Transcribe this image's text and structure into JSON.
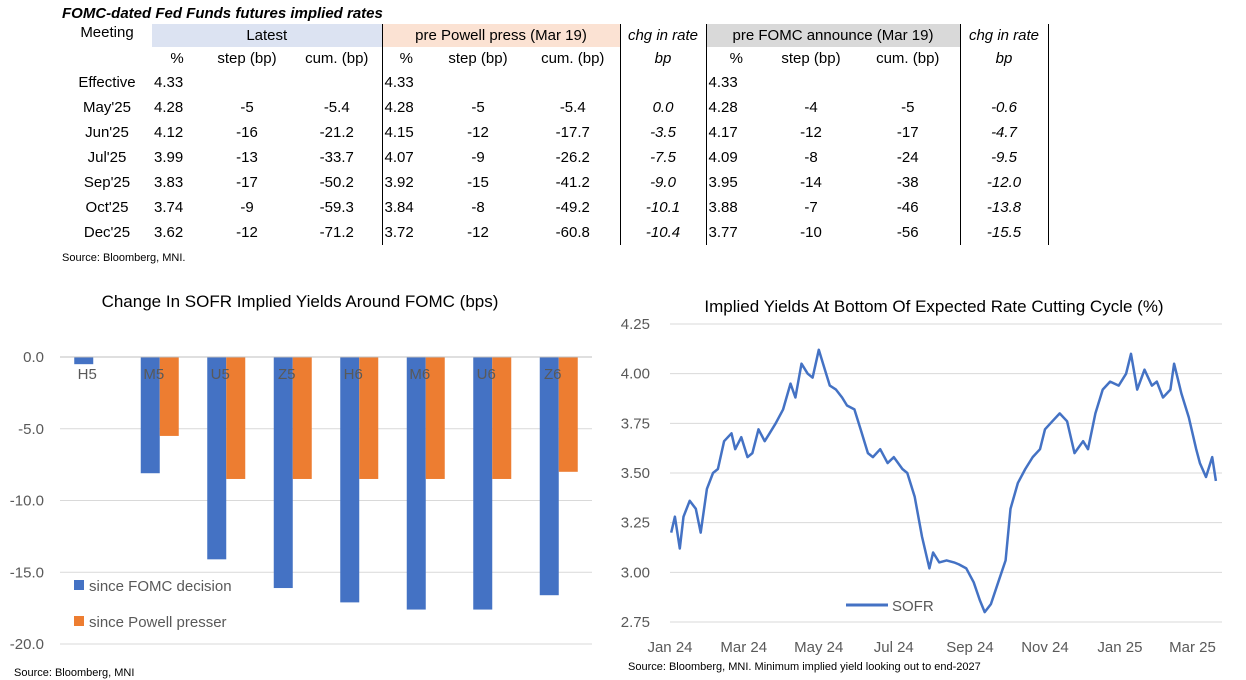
{
  "table": {
    "title": "FOMC-dated Fed Funds futures implied rates",
    "source": "Source: Bloomberg, MNI.",
    "meeting_header": "Meeting",
    "groups": {
      "latest": "Latest",
      "pre_powell": "pre Powell press (Mar 19)",
      "chg1": "chg in rate",
      "pre_fomc": "pre FOMC announce (Mar 19)",
      "chg2": "chg in rate"
    },
    "subheaders": {
      "pct": "%",
      "step": "step (bp)",
      "cum": "cum. (bp)",
      "bp": "bp"
    },
    "rows": [
      {
        "meeting": "Effective",
        "l_pct": "4.33",
        "l_step": "",
        "l_cum": "",
        "p_pct": "4.33",
        "p_step": "",
        "p_cum": "",
        "chg1": "",
        "f_pct": "4.33",
        "f_step": "",
        "f_cum": "",
        "chg2": ""
      },
      {
        "meeting": "May'25",
        "l_pct": "4.28",
        "l_step": "-5",
        "l_cum": "-5.4",
        "p_pct": "4.28",
        "p_step": "-5",
        "p_cum": "-5.4",
        "chg1": "0.0",
        "f_pct": "4.28",
        "f_step": "-4",
        "f_cum": "-5",
        "chg2": "-0.6"
      },
      {
        "meeting": "Jun'25",
        "l_pct": "4.12",
        "l_step": "-16",
        "l_cum": "-21.2",
        "p_pct": "4.15",
        "p_step": "-12",
        "p_cum": "-17.7",
        "chg1": "-3.5",
        "f_pct": "4.17",
        "f_step": "-12",
        "f_cum": "-17",
        "chg2": "-4.7"
      },
      {
        "meeting": "Jul'25",
        "l_pct": "3.99",
        "l_step": "-13",
        "l_cum": "-33.7",
        "p_pct": "4.07",
        "p_step": "-9",
        "p_cum": "-26.2",
        "chg1": "-7.5",
        "f_pct": "4.09",
        "f_step": "-8",
        "f_cum": "-24",
        "chg2": "-9.5"
      },
      {
        "meeting": "Sep'25",
        "l_pct": "3.83",
        "l_step": "-17",
        "l_cum": "-50.2",
        "p_pct": "3.92",
        "p_step": "-15",
        "p_cum": "-41.2",
        "chg1": "-9.0",
        "f_pct": "3.95",
        "f_step": "-14",
        "f_cum": "-38",
        "chg2": "-12.0"
      },
      {
        "meeting": "Oct'25",
        "l_pct": "3.74",
        "l_step": "-9",
        "l_cum": "-59.3",
        "p_pct": "3.84",
        "p_step": "-8",
        "p_cum": "-49.2",
        "chg1": "-10.1",
        "f_pct": "3.88",
        "f_step": "-7",
        "f_cum": "-46",
        "chg2": "-13.8"
      },
      {
        "meeting": "Dec'25",
        "l_pct": "3.62",
        "l_step": "-12",
        "l_cum": "-71.2",
        "p_pct": "3.72",
        "p_step": "-12",
        "p_cum": "-60.8",
        "chg1": "-10.4",
        "f_pct": "3.77",
        "f_step": "-10",
        "f_cum": "-56",
        "chg2": "-15.5"
      }
    ]
  },
  "colors": {
    "blue": "#4472c4",
    "orange": "#ed7d31",
    "grid": "#d9d9d9",
    "axis_text": "#595959"
  },
  "chart_data": [
    {
      "type": "bar",
      "title": "Change In SOFR Implied Yields Around FOMC (bps)",
      "categories": [
        "H5",
        "M5",
        "U5",
        "Z5",
        "H6",
        "M6",
        "U6",
        "Z6"
      ],
      "series": [
        {
          "name": "since FOMC decision",
          "values": [
            -0.5,
            -8.1,
            -14.1,
            -16.1,
            -17.1,
            -17.6,
            -17.6,
            -16.6
          ]
        },
        {
          "name": "since Powell presser",
          "values": [
            0.0,
            -5.5,
            -8.5,
            -8.5,
            -8.5,
            -8.5,
            -8.5,
            -8.0
          ]
        }
      ],
      "ylim": [
        -20,
        0
      ],
      "yticks": [
        0,
        -5,
        -10,
        -15,
        -20
      ],
      "ytick_labels": [
        "0.0",
        "-5.0",
        "-10.0",
        "-15.0",
        "-20.0"
      ],
      "grid": true,
      "legend_position": "bottom-left",
      "source": "Source: Bloomberg, MNI"
    },
    {
      "type": "line",
      "title": "Implied Yields At Bottom Of Expected Rate Cutting Cycle (%)",
      "series": [
        {
          "name": "SOFR",
          "x": [
            "2024-01-02",
            "2024-01-05",
            "2024-01-09",
            "2024-01-12",
            "2024-01-17",
            "2024-01-22",
            "2024-01-26",
            "2024-01-31",
            "2024-02-05",
            "2024-02-09",
            "2024-02-14",
            "2024-02-20",
            "2024-02-23",
            "2024-02-28",
            "2024-03-04",
            "2024-03-08",
            "2024-03-13",
            "2024-03-18",
            "2024-03-22",
            "2024-03-27",
            "2024-04-02",
            "2024-04-08",
            "2024-04-12",
            "2024-04-17",
            "2024-04-22",
            "2024-04-26",
            "2024-05-01",
            "2024-05-06",
            "2024-05-10",
            "2024-05-15",
            "2024-05-20",
            "2024-05-24",
            "2024-05-30",
            "2024-06-04",
            "2024-06-10",
            "2024-06-14",
            "2024-06-20",
            "2024-06-26",
            "2024-07-01",
            "2024-07-08",
            "2024-07-12",
            "2024-07-18",
            "2024-07-24",
            "2024-07-30",
            "2024-08-02",
            "2024-08-07",
            "2024-08-13",
            "2024-08-19",
            "2024-08-23",
            "2024-08-29",
            "2024-09-04",
            "2024-09-09",
            "2024-09-13",
            "2024-09-18",
            "2024-09-24",
            "2024-09-30",
            "2024-10-04",
            "2024-10-10",
            "2024-10-16",
            "2024-10-22",
            "2024-10-28",
            "2024-11-01",
            "2024-11-07",
            "2024-11-13",
            "2024-11-19",
            "2024-11-25",
            "2024-12-02",
            "2024-12-06",
            "2024-12-12",
            "2024-12-18",
            "2024-12-24",
            "2024-12-31",
            "2025-01-06",
            "2025-01-10",
            "2025-01-15",
            "2025-01-21",
            "2025-01-27",
            "2025-01-31",
            "2025-02-05",
            "2025-02-11",
            "2025-02-14",
            "2025-02-20",
            "2025-02-26",
            "2025-03-04",
            "2025-03-07",
            "2025-03-12",
            "2025-03-17",
            "2025-03-20"
          ],
          "values": [
            3.2,
            3.28,
            3.12,
            3.28,
            3.36,
            3.32,
            3.2,
            3.42,
            3.5,
            3.52,
            3.66,
            3.7,
            3.62,
            3.68,
            3.58,
            3.6,
            3.72,
            3.66,
            3.7,
            3.75,
            3.82,
            3.95,
            3.88,
            4.05,
            4.0,
            3.98,
            4.12,
            4.02,
            3.94,
            3.92,
            3.88,
            3.84,
            3.82,
            3.72,
            3.6,
            3.58,
            3.62,
            3.55,
            3.58,
            3.52,
            3.5,
            3.38,
            3.18,
            3.02,
            3.1,
            3.05,
            3.06,
            3.05,
            3.04,
            3.02,
            2.95,
            2.86,
            2.8,
            2.84,
            2.95,
            3.06,
            3.32,
            3.45,
            3.52,
            3.58,
            3.62,
            3.72,
            3.76,
            3.8,
            3.76,
            3.6,
            3.66,
            3.62,
            3.8,
            3.92,
            3.96,
            3.94,
            4.0,
            4.1,
            3.92,
            4.02,
            3.94,
            3.96,
            3.88,
            3.92,
            4.05,
            3.9,
            3.78,
            3.62,
            3.55,
            3.48,
            3.58,
            3.46
          ]
        }
      ],
      "ylim": [
        2.75,
        4.25
      ],
      "yticks": [
        2.75,
        3.0,
        3.25,
        3.5,
        3.75,
        4.0,
        4.25
      ],
      "ytick_labels": [
        "2.75",
        "3.00",
        "3.25",
        "3.50",
        "3.75",
        "4.00",
        "4.25"
      ],
      "xticks": [
        "2024-01-01",
        "2024-03-01",
        "2024-05-01",
        "2024-07-01",
        "2024-09-01",
        "2024-11-01",
        "2025-01-01",
        "2025-03-01"
      ],
      "xtick_labels": [
        "Jan 24",
        "Mar 24",
        "May 24",
        "Jul 24",
        "Sep 24",
        "Nov 24",
        "Jan 25",
        "Mar 25"
      ],
      "xlim": [
        "2024-01-01",
        "2025-03-25"
      ],
      "grid": true,
      "legend_position": "bottom-center",
      "source": "Source: Bloomberg, MNI. Minimum implied yield looking out to end-2027"
    }
  ]
}
